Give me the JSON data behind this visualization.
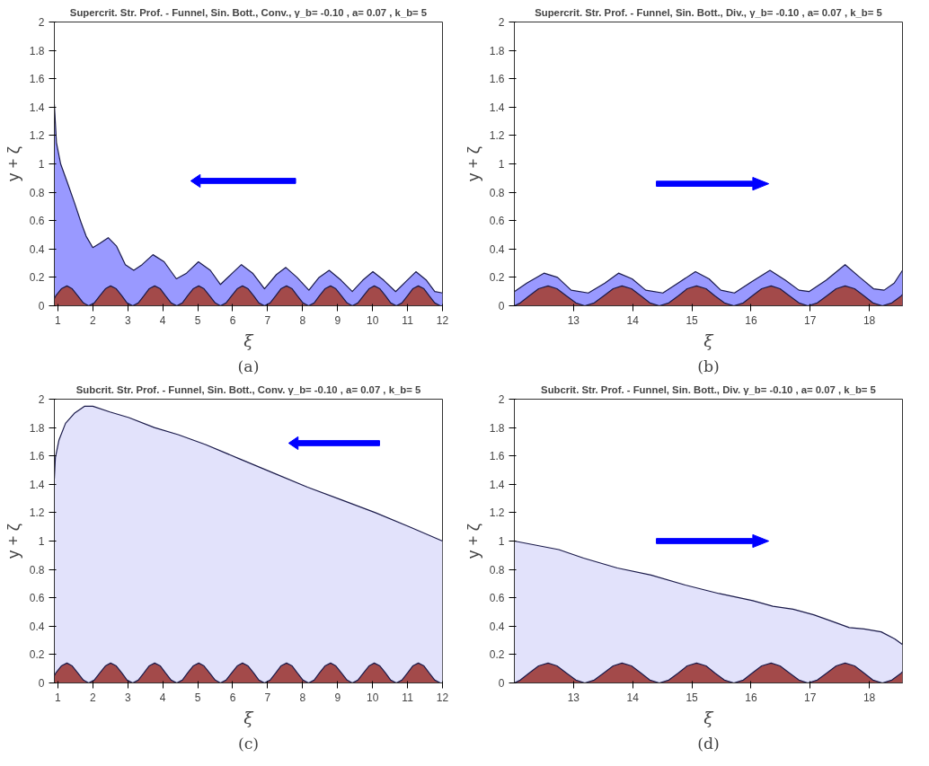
{
  "chart_data": [
    {
      "type": "area",
      "title": "Supercrit. Str. Prof. - Funnel, Sin. Bott., Conv., γ_b= -0.10 , a= 0.07 , k_b= 5",
      "xlabel": "ξ",
      "ylabel": "y + ζ",
      "xlim": [
        0.9,
        12
      ],
      "xticks": [
        1,
        2,
        3,
        4,
        5,
        6,
        7,
        8,
        9,
        10,
        11,
        12
      ],
      "ylim": [
        0,
        2
      ],
      "yticks": [
        0,
        0.2,
        0.4,
        0.6,
        0.8,
        1,
        1.2,
        1.4,
        1.6,
        1.8,
        2
      ],
      "grid": false,
      "annotations": [
        "(a)"
      ],
      "series": [
        {
          "color": "#9999ff",
          "x": [
            0.9,
            0.96,
            1.08,
            1.27,
            1.47,
            1.66,
            1.81,
            2.0,
            2.2,
            2.44,
            2.68,
            2.93,
            3.17,
            3.41,
            3.72,
            4.04,
            4.39,
            4.68,
            5.02,
            5.36,
            5.65,
            5.99,
            6.25,
            6.57,
            6.91,
            7.25,
            7.52,
            7.84,
            8.18,
            8.47,
            8.76,
            9.1,
            9.42,
            9.72,
            10.01,
            10.32,
            10.66,
            10.95,
            11.24,
            11.54,
            11.78,
            12.0
          ],
          "values": [
            1.42,
            1.15,
            1.0,
            0.87,
            0.73,
            0.59,
            0.49,
            0.41,
            0.44,
            0.48,
            0.42,
            0.29,
            0.25,
            0.29,
            0.36,
            0.31,
            0.19,
            0.23,
            0.31,
            0.25,
            0.15,
            0.23,
            0.29,
            0.23,
            0.12,
            0.22,
            0.27,
            0.2,
            0.11,
            0.2,
            0.25,
            0.18,
            0.1,
            0.18,
            0.24,
            0.18,
            0.1,
            0.17,
            0.24,
            0.18,
            0.1,
            0.09
          ]
        },
        {
          "color": "#a34a4a",
          "x": [
            0.9,
            0.94,
            1.1,
            1.26,
            1.41,
            1.57,
            1.73,
            1.88,
            2.04,
            2.2,
            2.36,
            2.51,
            2.67,
            2.83,
            2.98,
            3.14,
            3.3,
            3.46,
            3.61,
            3.77,
            3.93,
            4.08,
            4.24,
            4.4,
            4.56,
            4.71,
            4.87,
            5.03,
            5.18,
            5.34,
            5.5,
            5.65,
            5.81,
            5.97,
            6.13,
            6.28,
            6.44,
            6.6,
            6.75,
            6.91,
            7.07,
            7.23,
            7.38,
            7.54,
            7.7,
            7.85,
            8.01,
            8.17,
            8.33,
            8.48,
            8.64,
            8.8,
            8.95,
            9.11,
            9.27,
            9.42,
            9.58,
            9.74,
            9.9,
            10.05,
            10.21,
            10.37,
            10.52,
            10.68,
            10.84,
            11.0,
            11.15,
            11.31,
            11.47,
            11.62,
            11.78,
            11.94,
            12.0
          ],
          "values": [
            0.05,
            0.07,
            0.12,
            0.14,
            0.12,
            0.07,
            0.02,
            0,
            0.02,
            0.07,
            0.12,
            0.14,
            0.12,
            0.07,
            0.02,
            0,
            0.02,
            0.07,
            0.12,
            0.14,
            0.12,
            0.07,
            0.02,
            0,
            0.02,
            0.07,
            0.12,
            0.14,
            0.12,
            0.07,
            0.02,
            0,
            0.02,
            0.07,
            0.12,
            0.14,
            0.12,
            0.07,
            0.02,
            0,
            0.02,
            0.07,
            0.12,
            0.14,
            0.12,
            0.07,
            0.02,
            0,
            0.02,
            0.07,
            0.12,
            0.14,
            0.12,
            0.07,
            0.02,
            0,
            0.02,
            0.07,
            0.12,
            0.14,
            0.12,
            0.07,
            0.02,
            0,
            0.02,
            0.07,
            0.12,
            0.14,
            0.12,
            0.07,
            0.02,
            0,
            0
          ]
        }
      ]
    },
    {
      "type": "area",
      "title": "Supercrit. Str. Prof. - Funnel, Sin. Bott., Div., γ_b= -0.10 , a= 0.07 , k_b= 5",
      "xlabel": "ξ",
      "ylabel": "y + ζ",
      "xlim": [
        12.0,
        18.56
      ],
      "xticks": [
        13,
        14,
        15,
        16,
        17,
        18
      ],
      "ylim": [
        0,
        2
      ],
      "yticks": [
        0,
        0.2,
        0.4,
        0.6,
        0.8,
        1,
        1.2,
        1.4,
        1.6,
        1.8,
        2
      ],
      "grid": false,
      "annotations": [
        "(b)"
      ],
      "series": [
        {
          "color": "#9999ff",
          "x": [
            12.0,
            12.21,
            12.5,
            12.73,
            12.96,
            13.25,
            13.53,
            13.76,
            13.99,
            14.22,
            14.51,
            14.8,
            15.06,
            15.29,
            15.49,
            15.72,
            16.01,
            16.32,
            16.58,
            16.81,
            16.98,
            17.27,
            17.59,
            17.84,
            18.07,
            18.25,
            18.42,
            18.56
          ],
          "values": [
            0.1,
            0.16,
            0.23,
            0.2,
            0.11,
            0.09,
            0.16,
            0.23,
            0.19,
            0.11,
            0.09,
            0.17,
            0.24,
            0.19,
            0.11,
            0.09,
            0.17,
            0.25,
            0.18,
            0.11,
            0.1,
            0.18,
            0.29,
            0.2,
            0.12,
            0.11,
            0.16,
            0.25
          ]
        },
        {
          "color": "#a34a4a",
          "x": [
            12.0,
            12.1,
            12.25,
            12.41,
            12.57,
            12.72,
            12.88,
            13.04,
            13.19,
            13.35,
            13.51,
            13.67,
            13.82,
            13.98,
            14.14,
            14.29,
            14.45,
            14.61,
            14.77,
            14.92,
            15.08,
            15.24,
            15.39,
            15.55,
            15.71,
            15.87,
            16.02,
            16.18,
            16.34,
            16.49,
            16.65,
            16.81,
            16.96,
            17.12,
            17.28,
            17.44,
            17.59,
            17.75,
            17.91,
            18.06,
            18.22,
            18.38,
            18.54,
            18.56
          ],
          "values": [
            0,
            0.02,
            0.07,
            0.12,
            0.14,
            0.12,
            0.07,
            0.02,
            0,
            0.02,
            0.07,
            0.12,
            0.14,
            0.12,
            0.07,
            0.02,
            0,
            0.02,
            0.07,
            0.12,
            0.14,
            0.12,
            0.07,
            0.02,
            0,
            0.02,
            0.07,
            0.12,
            0.14,
            0.12,
            0.07,
            0.02,
            0,
            0.02,
            0.07,
            0.12,
            0.14,
            0.12,
            0.07,
            0.02,
            0,
            0.02,
            0.07,
            0.08
          ]
        }
      ]
    },
    {
      "type": "area",
      "title": "Subcrit. Str. Prof. - Funnel, Sin. Bott., Conv. γ_b= -0.10 , a= 0.07 , k_b= 5",
      "xlabel": "ξ",
      "ylabel": "y + ζ",
      "xlim": [
        0.9,
        12
      ],
      "xticks": [
        1,
        2,
        3,
        4,
        5,
        6,
        7,
        8,
        9,
        10,
        11,
        12
      ],
      "ylim": [
        0,
        2
      ],
      "yticks": [
        0,
        0.2,
        0.4,
        0.6,
        0.8,
        1,
        1.2,
        1.4,
        1.6,
        1.8,
        2
      ],
      "grid": false,
      "annotations": [
        "(c)"
      ],
      "series": [
        {
          "color": "#e2e2fb",
          "x": [
            0.9,
            0.93,
            1.03,
            1.22,
            1.47,
            1.76,
            2.0,
            2.49,
            3.03,
            3.76,
            4.44,
            5.22,
            6.19,
            7.16,
            8.14,
            9.11,
            10.08,
            11.06,
            12.0
          ],
          "values": [
            1.44,
            1.59,
            1.71,
            1.83,
            1.9,
            1.95,
            1.95,
            1.91,
            1.87,
            1.8,
            1.75,
            1.68,
            1.58,
            1.48,
            1.38,
            1.29,
            1.2,
            1.1,
            1.0
          ]
        },
        {
          "color": "#a34a4a",
          "x": [
            0.9,
            0.94,
            1.1,
            1.26,
            1.41,
            1.57,
            1.73,
            1.88,
            2.04,
            2.2,
            2.36,
            2.51,
            2.67,
            2.83,
            2.98,
            3.14,
            3.3,
            3.46,
            3.61,
            3.77,
            3.93,
            4.08,
            4.24,
            4.4,
            4.56,
            4.71,
            4.87,
            5.03,
            5.18,
            5.34,
            5.5,
            5.65,
            5.81,
            5.97,
            6.13,
            6.28,
            6.44,
            6.6,
            6.75,
            6.91,
            7.07,
            7.23,
            7.38,
            7.54,
            7.7,
            7.85,
            8.01,
            8.17,
            8.33,
            8.48,
            8.64,
            8.8,
            8.95,
            9.11,
            9.27,
            9.42,
            9.58,
            9.74,
            9.9,
            10.05,
            10.21,
            10.37,
            10.52,
            10.68,
            10.84,
            11.0,
            11.15,
            11.31,
            11.47,
            11.62,
            11.78,
            11.94,
            12.0
          ],
          "values": [
            0.05,
            0.07,
            0.12,
            0.14,
            0.12,
            0.07,
            0.02,
            0,
            0.02,
            0.07,
            0.12,
            0.14,
            0.12,
            0.07,
            0.02,
            0,
            0.02,
            0.07,
            0.12,
            0.14,
            0.12,
            0.07,
            0.02,
            0,
            0.02,
            0.07,
            0.12,
            0.14,
            0.12,
            0.07,
            0.02,
            0,
            0.02,
            0.07,
            0.12,
            0.14,
            0.12,
            0.07,
            0.02,
            0,
            0.02,
            0.07,
            0.12,
            0.14,
            0.12,
            0.07,
            0.02,
            0,
            0.02,
            0.07,
            0.12,
            0.14,
            0.12,
            0.07,
            0.02,
            0,
            0.02,
            0.07,
            0.12,
            0.14,
            0.12,
            0.07,
            0.02,
            0,
            0.02,
            0.07,
            0.12,
            0.14,
            0.12,
            0.07,
            0.02,
            0,
            0
          ]
        }
      ]
    },
    {
      "type": "area",
      "title": "Subcrit. Str. Prof. - Funnel, Sin. Bott., Div. γ_b= -0.10 , a= 0.07 , k_b= 5",
      "xlabel": "ξ",
      "ylabel": "y + ζ",
      "xlim": [
        12.0,
        18.56
      ],
      "xticks": [
        13,
        14,
        15,
        16,
        17,
        18
      ],
      "ylim": [
        0,
        2
      ],
      "yticks": [
        0,
        0.2,
        0.4,
        0.6,
        0.8,
        1,
        1.2,
        1.4,
        1.6,
        1.8,
        2
      ],
      "grid": false,
      "annotations": [
        "(d)"
      ],
      "series": [
        {
          "color": "#e2e2fb",
          "x": [
            12.0,
            12.75,
            13.17,
            13.74,
            14.31,
            14.89,
            15.46,
            16.03,
            16.37,
            16.71,
            17.06,
            17.4,
            17.66,
            17.91,
            18.2,
            18.43,
            18.56
          ],
          "values": [
            1.0,
            0.94,
            0.88,
            0.81,
            0.76,
            0.69,
            0.63,
            0.58,
            0.54,
            0.52,
            0.48,
            0.43,
            0.39,
            0.38,
            0.36,
            0.31,
            0.27
          ]
        },
        {
          "color": "#a34a4a",
          "x": [
            12.0,
            12.1,
            12.25,
            12.41,
            12.57,
            12.72,
            12.88,
            13.04,
            13.19,
            13.35,
            13.51,
            13.67,
            13.82,
            13.98,
            14.14,
            14.29,
            14.45,
            14.61,
            14.77,
            14.92,
            15.08,
            15.24,
            15.39,
            15.55,
            15.71,
            15.87,
            16.02,
            16.18,
            16.34,
            16.49,
            16.65,
            16.81,
            16.96,
            17.12,
            17.28,
            17.44,
            17.59,
            17.75,
            17.91,
            18.06,
            18.22,
            18.38,
            18.54,
            18.56
          ],
          "values": [
            0,
            0.02,
            0.07,
            0.12,
            0.14,
            0.12,
            0.07,
            0.02,
            0,
            0.02,
            0.07,
            0.12,
            0.14,
            0.12,
            0.07,
            0.02,
            0,
            0.02,
            0.07,
            0.12,
            0.14,
            0.12,
            0.07,
            0.02,
            0,
            0.02,
            0.07,
            0.12,
            0.14,
            0.12,
            0.07,
            0.02,
            0,
            0.02,
            0.07,
            0.12,
            0.14,
            0.12,
            0.07,
            0.02,
            0,
            0.02,
            0.07,
            0.08
          ]
        }
      ]
    }
  ]
}
